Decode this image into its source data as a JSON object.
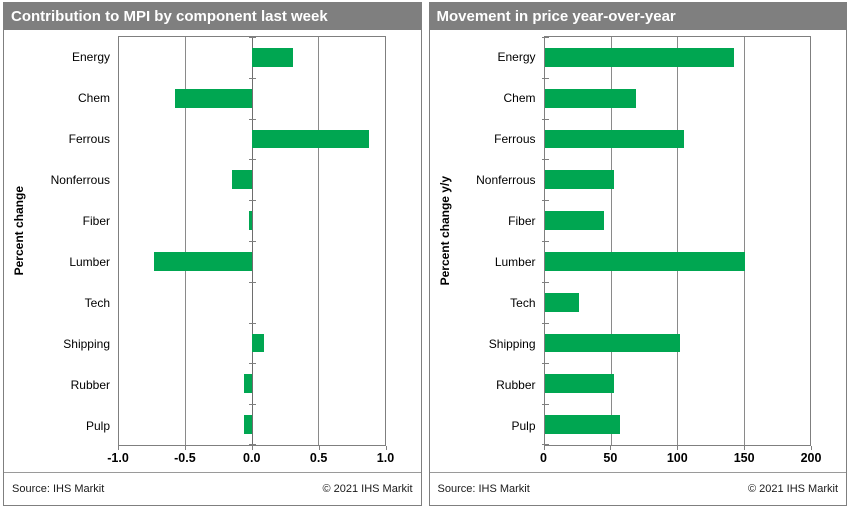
{
  "chart_data": [
    {
      "type": "bar",
      "orientation": "horizontal",
      "title": "Contribution to MPI by component last week",
      "ylabel": "Percent change",
      "xlabel": "",
      "categories": [
        "Energy",
        "Chem",
        "Ferrous",
        "Nonferrous",
        "Fiber",
        "Lumber",
        "Tech",
        "Shipping",
        "Rubber",
        "Pulp"
      ],
      "values": [
        0.31,
        -0.58,
        0.88,
        -0.15,
        -0.02,
        -0.74,
        0,
        0.09,
        -0.06,
        -0.06
      ],
      "xlim": [
        -1.0,
        1.0
      ],
      "xticks": [
        -1.0,
        -0.5,
        0.0,
        0.5,
        1.0
      ],
      "xtick_labels": [
        "-1.0",
        "-0.5",
        "0.0",
        "0.5",
        "1.0"
      ],
      "grid": "vertical",
      "legend": "none",
      "bar_color": "#00a651",
      "source": "Source: IHS Markit",
      "copyright": "© 2021  IHS Markit"
    },
    {
      "type": "bar",
      "orientation": "horizontal",
      "title": "Movement in price year-over-year",
      "ylabel": "Percent change y/y",
      "xlabel": "",
      "categories": [
        "Energy",
        "Chem",
        "Ferrous",
        "Nonferrous",
        "Fiber",
        "Lumber",
        "Tech",
        "Shipping",
        "Rubber",
        "Pulp"
      ],
      "values": [
        143,
        69,
        105,
        52,
        45,
        151,
        26,
        102,
        52,
        57
      ],
      "xlim": [
        0,
        200
      ],
      "xticks": [
        0,
        50,
        100,
        150,
        200
      ],
      "xtick_labels": [
        "0",
        "50",
        "100",
        "150",
        "200"
      ],
      "grid": "vertical",
      "legend": "none",
      "bar_color": "#00a651",
      "source": "Source: IHS Markit",
      "copyright": "© 2021  IHS Markit"
    }
  ]
}
